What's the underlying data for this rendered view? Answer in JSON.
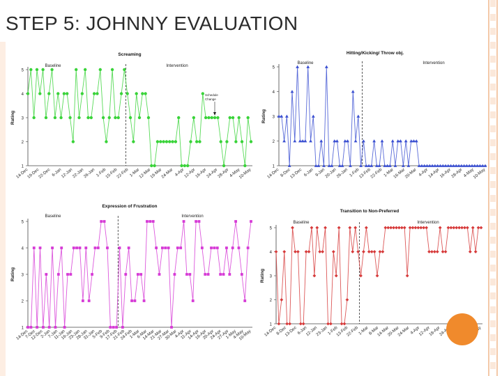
{
  "slide": {
    "title": "STEP 5:  JOHNNY EVALUATION"
  },
  "chart_data": [
    {
      "type": "line",
      "title": "Screaming",
      "ylabel": "Rating",
      "phase_labels": [
        "Baseline",
        "Intervention"
      ],
      "annotation": "Schedule Change",
      "tick_labels": [
        "14-Dec",
        "19-Dec",
        "22-Dec",
        "6-Jan",
        "12-Jan",
        "22-Jan",
        "26-Jan",
        "1-Feb",
        "15-Feb",
        "22-Feb",
        "1-Mar",
        "12-Mar",
        "19-Mar",
        "24-Mar",
        "4-Apr",
        "12-Apr",
        "16-Apr",
        "24-Apr",
        "28-Apr",
        "4-May",
        "10-May"
      ],
      "ylim": [
        1,
        5
      ],
      "yticks": [
        1,
        2,
        3,
        4,
        5
      ],
      "color": "#39d339",
      "phase_change_after": 32,
      "series": [
        {
          "values": [
            4,
            5,
            3,
            5,
            4,
            5,
            3,
            4,
            5,
            3,
            4,
            3,
            4,
            4,
            3,
            2,
            5,
            3,
            4,
            5,
            3,
            3,
            4,
            4,
            5,
            3,
            2,
            3,
            5,
            3,
            3,
            4,
            5,
            4,
            3,
            2,
            4,
            3,
            4,
            4,
            3,
            1,
            1,
            2,
            2,
            2,
            2,
            2,
            2,
            2,
            3,
            1,
            1,
            1,
            2,
            3,
            2,
            2,
            4,
            3,
            3,
            3,
            3,
            3,
            2,
            1,
            2,
            3,
            3,
            2,
            3,
            2,
            1,
            3,
            2
          ]
        }
      ]
    },
    {
      "type": "line",
      "title": "Hitting/Kicking/ Throw obj.",
      "ylabel": "Rating",
      "phase_labels": [
        "Baseline",
        "Intervention"
      ],
      "tick_labels": [
        "14-Dec",
        "8-Dec",
        "13-Dec",
        "6-Jan",
        "9-Jan",
        "20-Jan",
        "26-Jan",
        "1-Feb",
        "13-Feb",
        "22-Feb",
        "1-Mar",
        "16-Mar",
        "20-Mar",
        "4-Apr",
        "14-Apr",
        "16-Apr",
        "28-Apr",
        "4-May",
        "10-May"
      ],
      "ylim": [
        1,
        5
      ],
      "yticks": [
        1,
        2,
        3,
        4,
        5
      ],
      "color": "#3a4fd1",
      "phase_change_after": 31,
      "series": [
        {
          "values": [
            3,
            3,
            2,
            3,
            1,
            4,
            2,
            5,
            2,
            2,
            2,
            5,
            2,
            3,
            1,
            1,
            2,
            1,
            5,
            1,
            1,
            2,
            2,
            1,
            1,
            2,
            2,
            1,
            4,
            2,
            3,
            1,
            2,
            1,
            1,
            1,
            2,
            1,
            1,
            2,
            1,
            1,
            1,
            2,
            1,
            2,
            2,
            1,
            2,
            1,
            2,
            2,
            2,
            1,
            1,
            1,
            1,
            1,
            1,
            1,
            1,
            1,
            1,
            1,
            1,
            1,
            1,
            1,
            1,
            1,
            1,
            1,
            1,
            1,
            1,
            1,
            1,
            1,
            1
          ]
        }
      ]
    },
    {
      "type": "line",
      "title": "Expression of Frustration",
      "ylabel": "Rating",
      "phase_labels": [
        "Baseline",
        "Intervention"
      ],
      "tick_labels": [
        "14-Dec",
        "7-Dec",
        "12-Dec",
        "2-Jan",
        "7-Jan",
        "11-Jan",
        "16-Jan",
        "23-Jan",
        "28-Jan",
        "31-Jan",
        "5-Feb",
        "9-Feb",
        "17-Feb",
        "21-Feb",
        "24-Feb",
        "1-Mar",
        "6-Mar",
        "14-Mar",
        "21-Mar",
        "27-Mar",
        "30-Mar",
        "4-Apr",
        "11-Apr",
        "14-Apr",
        "16-Apr",
        "20-Apr",
        "24-Apr",
        "27-Apr",
        "1-May",
        "4-May",
        "10-May"
      ],
      "ylim": [
        1,
        5
      ],
      "yticks": [
        1,
        2,
        3,
        4,
        5
      ],
      "color": "#d63bd6",
      "phase_change_after": 29,
      "series": [
        {
          "values": [
            1,
            1,
            4,
            1,
            4,
            1,
            3,
            1,
            4,
            1,
            3,
            4,
            1,
            3,
            3,
            4,
            4,
            4,
            2,
            4,
            2,
            3,
            4,
            4,
            5,
            5,
            4,
            1,
            1,
            1,
            4,
            1,
            3,
            4,
            2,
            2,
            3,
            3,
            2,
            5,
            5,
            5,
            4,
            3,
            4,
            4,
            4,
            1,
            3,
            4,
            4,
            5,
            3,
            3,
            2,
            5,
            5,
            4,
            3,
            3,
            4,
            4,
            4,
            3,
            3,
            4,
            3,
            4,
            5,
            4,
            3,
            2,
            4,
            5
          ]
        }
      ]
    },
    {
      "type": "line",
      "title": "Transition to Non-Preferred",
      "ylabel": "Rating",
      "phase_labels": [
        "Baseline",
        "Intervention"
      ],
      "tick_labels": [
        "14-Dec",
        "8-Dec",
        "13-Dec",
        "6-Jan",
        "12-Jan",
        "23-Jan",
        "1-Feb",
        "13-Feb",
        "22-Feb",
        "1-Mar",
        "8-Mar",
        "14-Mar",
        "20-Mar",
        "24-Mar",
        "4-Apr",
        "12-Apr",
        "18-Apr",
        "24-Apr",
        "30-Apr",
        "4-May",
        "10-May"
      ],
      "ylim": [
        1,
        5
      ],
      "yticks": [
        1,
        2,
        3,
        4,
        5
      ],
      "color": "#d63a3a",
      "phase_change_after": 30,
      "series": [
        {
          "values": [
            4,
            1,
            2,
            4,
            1,
            1,
            5,
            4,
            4,
            1,
            1,
            4,
            4,
            5,
            3,
            5,
            4,
            4,
            5,
            1,
            1,
            4,
            3,
            5,
            1,
            1,
            2,
            5,
            4,
            5,
            4,
            3,
            4,
            5,
            4,
            4,
            4,
            3,
            4,
            4,
            5,
            5,
            5,
            5,
            5,
            5,
            5,
            5,
            3,
            5,
            5,
            5,
            5,
            5,
            5,
            5,
            4,
            4,
            4,
            4,
            5,
            4,
            4,
            5,
            5,
            5,
            5,
            5,
            5,
            5,
            5,
            4,
            5,
            4,
            5,
            5
          ]
        }
      ]
    }
  ]
}
